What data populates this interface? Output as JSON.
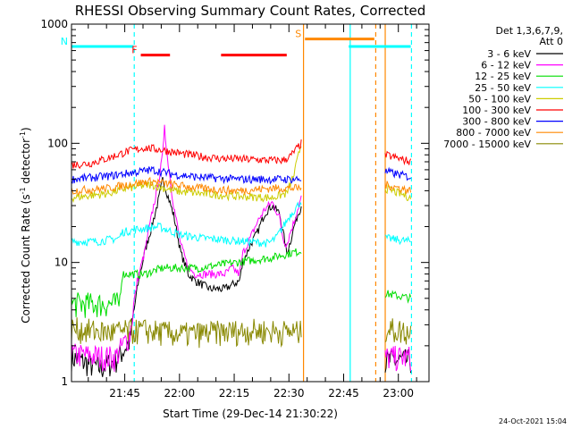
{
  "chart_data": {
    "type": "line",
    "title": "RHESSI Observing Summary Count Rates, Corrected",
    "xlabel": "Start Time (29-Dec-14 21:30:22)",
    "ylabel": "Corrected Count Rate (s",
    "ylabel_sup1": "-1",
    "ylabel_mid": " detector",
    "ylabel_sup2": "-1",
    "ylabel_end": ")",
    "y_scale": "log",
    "ylim": [
      1,
      1000
    ],
    "y_ticks": [
      {
        "value": 1,
        "label": "1"
      },
      {
        "value": 10,
        "label": "10"
      },
      {
        "value": 100,
        "label": "100"
      },
      {
        "value": 1000,
        "label": "1000"
      }
    ],
    "xlim_minutes": [
      0,
      98
    ],
    "x_ticks": [
      {
        "label": "21:45",
        "minute": 14.6
      },
      {
        "label": "22:00",
        "minute": 29.6
      },
      {
        "label": "22:15",
        "minute": 44.6
      },
      {
        "label": "22:30",
        "minute": 59.6
      },
      {
        "label": "22:45",
        "minute": 74.6
      },
      {
        "label": "23:00",
        "minute": 89.6
      }
    ],
    "legend": {
      "header1": "Det 1,3,6,7,9,",
      "header2": "Att 0",
      "entries": [
        {
          "label": "3 - 6 keV",
          "color": "#000000"
        },
        {
          "label": "6 - 12 keV",
          "color": "#ff00ff"
        },
        {
          "label": "12 - 25 keV",
          "color": "#00dd00"
        },
        {
          "label": "25 - 50 keV",
          "color": "#00ffff"
        },
        {
          "label": "50 - 100 keV",
          "color": "#cccc00"
        },
        {
          "label": "100 - 300 keV",
          "color": "#ff0000"
        },
        {
          "label": "300 - 800 keV",
          "color": "#0000ff"
        },
        {
          "label": "800 - 7000 keV",
          "color": "#ff8800"
        },
        {
          "label": "7000 - 15000 keV",
          "color": "#888800"
        }
      ]
    },
    "flags": [
      {
        "label": "N",
        "color": "#00ffff",
        "segments": [
          [
            0,
            17
          ],
          [
            76,
            93
          ]
        ],
        "level": 650
      },
      {
        "label": "F",
        "color": "#ff0000",
        "segments": [
          [
            19,
            27
          ],
          [
            41,
            59
          ]
        ],
        "level": 550
      },
      {
        "label": "S",
        "color": "#ff8800",
        "segments": [
          [
            64,
            83
          ]
        ],
        "level": 750
      }
    ],
    "vlines": [
      {
        "minute": 17.2,
        "color": "#00ffff",
        "style": "dashed"
      },
      {
        "minute": 63.6,
        "color": "#ff8800",
        "style": "solid"
      },
      {
        "minute": 76.4,
        "color": "#00ffff",
        "style": "solid"
      },
      {
        "minute": 83.4,
        "color": "#ff8800",
        "style": "dashed"
      },
      {
        "minute": 86.0,
        "color": "#ff8800",
        "style": "solid"
      },
      {
        "minute": 93.2,
        "color": "#00ffff",
        "style": "dashed"
      }
    ],
    "data_gaps": [
      [
        63,
        86
      ]
    ],
    "series": [
      {
        "name": "3 - 6 keV",
        "color": "#000000",
        "points": [
          [
            0,
            1.6
          ],
          [
            8,
            1.3
          ],
          [
            12,
            1.5
          ],
          [
            14,
            1.8
          ],
          [
            16,
            2.2
          ],
          [
            18,
            6
          ],
          [
            20,
            12
          ],
          [
            22,
            20
          ],
          [
            24,
            35
          ],
          [
            25,
            50
          ],
          [
            26,
            40
          ],
          [
            28,
            25
          ],
          [
            30,
            12
          ],
          [
            32,
            8
          ],
          [
            34,
            7
          ],
          [
            38,
            6
          ],
          [
            42,
            6
          ],
          [
            44,
            6.5
          ],
          [
            46,
            7
          ],
          [
            47,
            10
          ],
          [
            49,
            14
          ],
          [
            51,
            18
          ],
          [
            53,
            26
          ],
          [
            55,
            30
          ],
          [
            57,
            26
          ],
          [
            58,
            18
          ],
          [
            59,
            12
          ],
          [
            60,
            15
          ],
          [
            61,
            20
          ],
          [
            62,
            25
          ],
          [
            63,
            30
          ],
          [
            86,
            1.5
          ],
          [
            93,
            1.5
          ]
        ]
      },
      {
        "name": "6 - 12 keV",
        "color": "#ff00ff",
        "points": [
          [
            0,
            1.7
          ],
          [
            12,
            1.6
          ],
          [
            16,
            2.5
          ],
          [
            18,
            7
          ],
          [
            20,
            12
          ],
          [
            22,
            25
          ],
          [
            24,
            50
          ],
          [
            25,
            80
          ],
          [
            25.5,
            150
          ],
          [
            26,
            90
          ],
          [
            28,
            30
          ],
          [
            30,
            14
          ],
          [
            32,
            9
          ],
          [
            34,
            8
          ],
          [
            38,
            8
          ],
          [
            42,
            8
          ],
          [
            44,
            9
          ],
          [
            46,
            8
          ],
          [
            47,
            12
          ],
          [
            49,
            16
          ],
          [
            51,
            22
          ],
          [
            53,
            28
          ],
          [
            55,
            32
          ],
          [
            57,
            24
          ],
          [
            58,
            16
          ],
          [
            59,
            14
          ],
          [
            60,
            18
          ],
          [
            61,
            22
          ],
          [
            62,
            28
          ],
          [
            63,
            35
          ],
          [
            86,
            1.6
          ],
          [
            93,
            1.6
          ]
        ]
      },
      {
        "name": "12 - 25 keV",
        "color": "#00dd00",
        "points": [
          [
            0,
            4.5
          ],
          [
            13,
            4.5
          ],
          [
            14,
            8
          ],
          [
            20,
            8
          ],
          [
            25,
            9
          ],
          [
            30,
            9
          ],
          [
            35,
            9
          ],
          [
            40,
            9.5
          ],
          [
            45,
            10
          ],
          [
            50,
            10.5
          ],
          [
            55,
            11
          ],
          [
            60,
            12
          ],
          [
            63,
            12.5
          ],
          [
            86,
            5.5
          ],
          [
            93,
            5
          ]
        ]
      },
      {
        "name": "25 - 50 keV",
        "color": "#00ffff",
        "points": [
          [
            0,
            15
          ],
          [
            7,
            15
          ],
          [
            13,
            16
          ],
          [
            14,
            18
          ],
          [
            18,
            19
          ],
          [
            24,
            20
          ],
          [
            30,
            17
          ],
          [
            36,
            16
          ],
          [
            42,
            15.5
          ],
          [
            48,
            15
          ],
          [
            54,
            14.5
          ],
          [
            56,
            16
          ],
          [
            58,
            20
          ],
          [
            60,
            25
          ],
          [
            62,
            30
          ],
          [
            63,
            33
          ],
          [
            86,
            16
          ],
          [
            93,
            15
          ]
        ]
      },
      {
        "name": "50 - 100 keV",
        "color": "#cccc00",
        "points": [
          [
            0,
            35
          ],
          [
            10,
            38
          ],
          [
            15,
            42
          ],
          [
            22,
            45
          ],
          [
            28,
            40
          ],
          [
            35,
            38
          ],
          [
            45,
            36
          ],
          [
            55,
            35
          ],
          [
            59,
            38
          ],
          [
            61,
            55
          ],
          [
            63,
            100
          ],
          [
            86,
            42
          ],
          [
            93,
            35
          ]
        ]
      },
      {
        "name": "100 - 300 keV",
        "color": "#ff0000",
        "points": [
          [
            0,
            66
          ],
          [
            5,
            68
          ],
          [
            10,
            75
          ],
          [
            15,
            85
          ],
          [
            20,
            92
          ],
          [
            25,
            88
          ],
          [
            30,
            82
          ],
          [
            35,
            78
          ],
          [
            40,
            75
          ],
          [
            45,
            74
          ],
          [
            50,
            73
          ],
          [
            55,
            72
          ],
          [
            58,
            72
          ],
          [
            60,
            78
          ],
          [
            63,
            100
          ],
          [
            86,
            80
          ],
          [
            93,
            70
          ]
        ]
      },
      {
        "name": "300 - 800 keV",
        "color": "#0000ff",
        "points": [
          [
            0,
            50
          ],
          [
            10,
            53
          ],
          [
            17,
            57
          ],
          [
            22,
            60
          ],
          [
            28,
            55
          ],
          [
            35,
            52
          ],
          [
            45,
            50
          ],
          [
            55,
            50
          ],
          [
            63,
            50
          ],
          [
            86,
            58
          ],
          [
            93,
            52
          ]
        ]
      },
      {
        "name": "800 - 7000 keV",
        "color": "#ff8800",
        "points": [
          [
            0,
            40
          ],
          [
            10,
            42
          ],
          [
            17,
            46
          ],
          [
            22,
            48
          ],
          [
            28,
            45
          ],
          [
            35,
            42
          ],
          [
            45,
            40
          ],
          [
            55,
            42
          ],
          [
            63,
            42
          ],
          [
            86,
            45
          ],
          [
            93,
            40
          ]
        ]
      },
      {
        "name": "7000 - 15000 keV",
        "color": "#888800",
        "points": [
          [
            0,
            2.8
          ],
          [
            10,
            2.6
          ],
          [
            20,
            2.7
          ],
          [
            30,
            2.5
          ],
          [
            40,
            2.6
          ],
          [
            50,
            2.7
          ],
          [
            63,
            2.6
          ],
          [
            86,
            2.8
          ],
          [
            93,
            2.6
          ]
        ]
      }
    ]
  },
  "footer": {
    "timestamp": "24-Oct-2021 15:04"
  }
}
